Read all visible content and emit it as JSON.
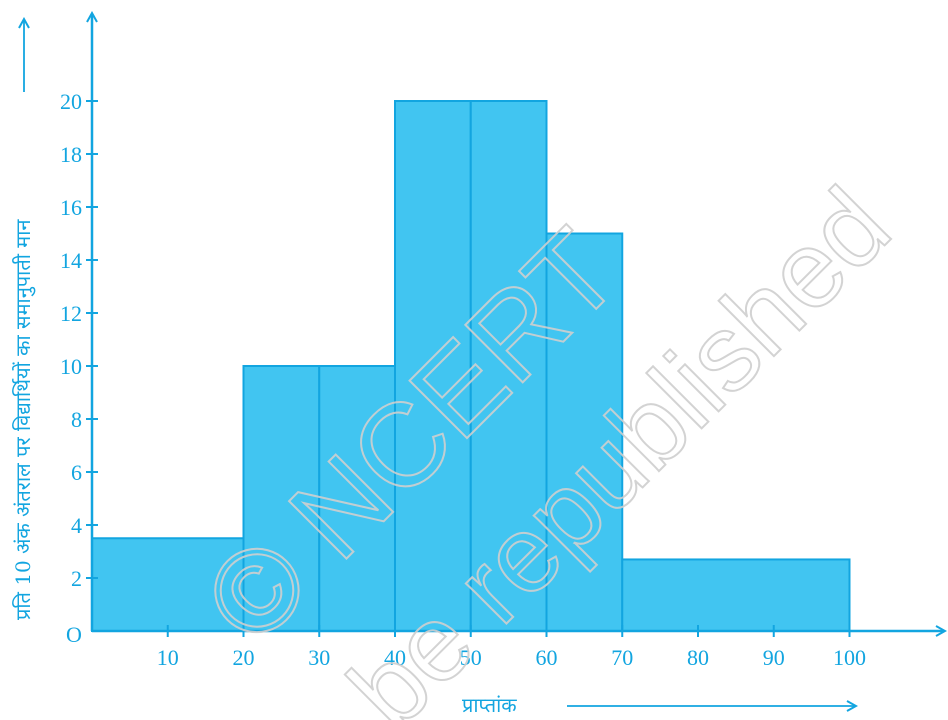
{
  "chart_data": {
    "type": "bar",
    "bins": [
      {
        "from": 0,
        "to": 20,
        "value": 3.5
      },
      {
        "from": 20,
        "to": 30,
        "value": 10
      },
      {
        "from": 30,
        "to": 40,
        "value": 10
      },
      {
        "from": 40,
        "to": 50,
        "value": 20
      },
      {
        "from": 50,
        "to": 60,
        "value": 20
      },
      {
        "from": 60,
        "to": 70,
        "value": 15
      },
      {
        "from": 70,
        "to": 100,
        "value": 2.7
      }
    ],
    "xlabel": "प्राप्तांक",
    "ylabel": "प्रति 10 अंक अंतराल पर विद्यार्थियों का समानुपाती मान",
    "origin_label": "O",
    "xticks": [
      10,
      20,
      30,
      40,
      50,
      60,
      70,
      80,
      90,
      100
    ],
    "yticks": [
      2,
      4,
      6,
      8,
      10,
      12,
      14,
      16,
      18,
      20
    ],
    "xlim": [
      0,
      110
    ],
    "ylim": [
      0,
      22
    ],
    "grid": false,
    "colors": {
      "bar_fill": "#41c5f1",
      "axis": "#12a5e0",
      "watermark": "#cfcfcf"
    }
  },
  "watermark": {
    "line1": "© NCERT",
    "line2": "be republished"
  }
}
